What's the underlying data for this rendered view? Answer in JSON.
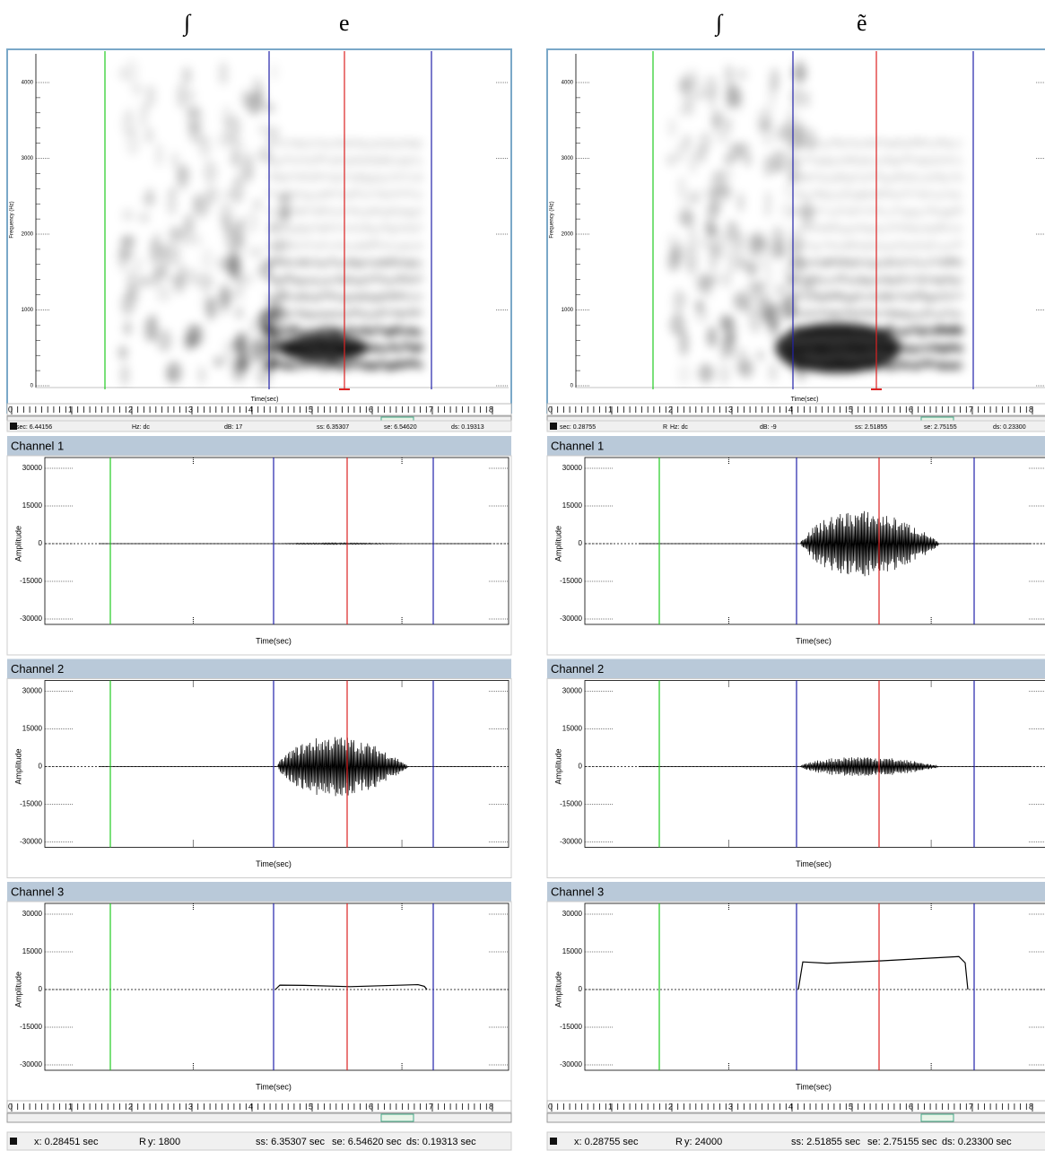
{
  "panels": [
    {
      "heading": [
        "∫",
        "e"
      ],
      "spectrogram": {
        "y_label": "Frequency (Hz)",
        "x_label": "Time(sec)",
        "yticks": [
          "4000",
          "3000",
          "2000",
          "1000",
          "0"
        ],
        "ruler": [
          "0",
          "1",
          "2",
          "3",
          "4",
          "5",
          "6",
          "7",
          "8"
        ],
        "status": [
          "sec: 6.44156",
          "Hz: dc",
          "dB: 17",
          "ss: 6.35307",
          "se: 6.54620",
          "ds: 0.19313"
        ]
      },
      "channels": [
        {
          "title": "Channel 1",
          "y_label": "Amplitude",
          "x_label": "Time(sec)",
          "yticks": [
            "30000",
            "15000",
            "0",
            "-15000",
            "-30000"
          ]
        },
        {
          "title": "Channel 2",
          "y_label": "Amplitude",
          "x_label": "Time(sec)",
          "yticks": [
            "30000",
            "15000",
            "0",
            "-15000",
            "-30000"
          ]
        },
        {
          "title": "Channel 3",
          "y_label": "Amplitude",
          "x_label": "Time(sec)",
          "yticks": [
            "30000",
            "15000",
            "0",
            "-15000",
            "-30000"
          ]
        }
      ],
      "ruler": [
        "0",
        "1",
        "2",
        "3",
        "4",
        "5",
        "6",
        "7",
        "8"
      ],
      "status": [
        "x: 0.28451 sec",
        "R",
        "y: 1800",
        "ss: 6.35307 sec",
        "se: 6.54620 sec",
        "ds: 0.19313 sec"
      ]
    },
    {
      "heading": [
        "∫",
        "ẽ"
      ],
      "spectrogram": {
        "y_label": "Frequency (Hz)",
        "x_label": "Time(sec)",
        "yticks": [
          "4000",
          "3000",
          "2000",
          "1000",
          "0"
        ],
        "ruler": [
          "0",
          "1",
          "2",
          "3",
          "4",
          "5",
          "6",
          "7",
          "8"
        ],
        "status": [
          "sec: 0.28755",
          "R",
          "Hz: dc",
          "dB: -9",
          "ss: 2.51855",
          "se: 2.75155",
          "ds: 0.23300"
        ]
      },
      "channels": [
        {
          "title": "Channel 1",
          "y_label": "Amplitude",
          "x_label": "Time(sec)",
          "yticks": [
            "30000",
            "15000",
            "0",
            "-15000",
            "-30000"
          ]
        },
        {
          "title": "Channel 2",
          "y_label": "Amplitude",
          "x_label": "Time(sec)",
          "yticks": [
            "30000",
            "15000",
            "0",
            "-15000",
            "-30000"
          ]
        },
        {
          "title": "Channel 3",
          "y_label": "Amplitude",
          "x_label": "Time(sec)",
          "yticks": [
            "30000",
            "15000",
            "0",
            "-15000",
            "-30000"
          ]
        }
      ],
      "ruler": [
        "0",
        "1",
        "2",
        "3",
        "4",
        "5",
        "6",
        "7",
        "8"
      ],
      "status": [
        "x: 0.28755 sec",
        "R",
        "y: 24000",
        "ss: 2.51855 sec",
        "se: 2.75155 sec",
        "ds: 0.23300 sec"
      ]
    }
  ]
}
